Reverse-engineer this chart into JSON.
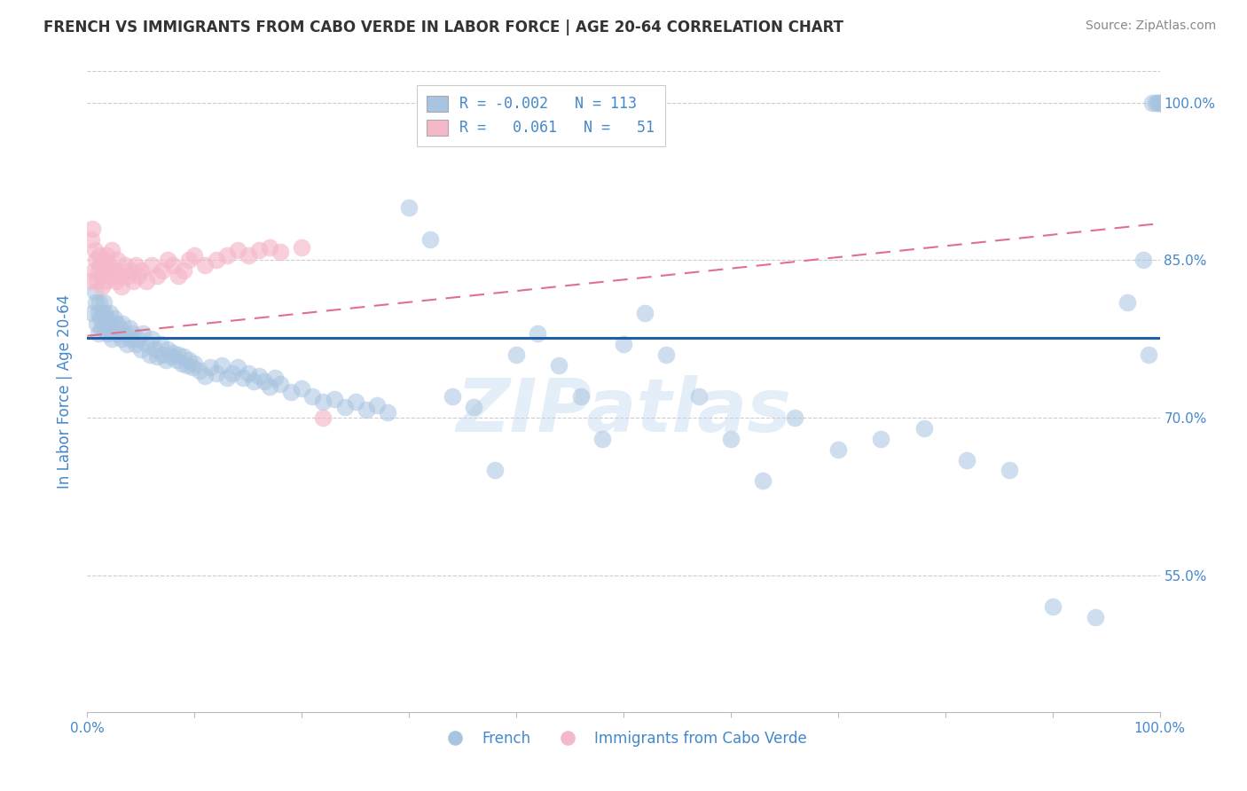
{
  "title": "FRENCH VS IMMIGRANTS FROM CABO VERDE IN LABOR FORCE | AGE 20-64 CORRELATION CHART",
  "source": "Source: ZipAtlas.com",
  "ylabel": "In Labor Force | Age 20-64",
  "xlim": [
    0.0,
    1.0
  ],
  "ylim": [
    0.42,
    1.03
  ],
  "ytick_vals": [
    0.55,
    0.7,
    0.85,
    1.0
  ],
  "ytick_labels": [
    "55.0%",
    "70.0%",
    "85.0%",
    "100.0%"
  ],
  "legend_r_blue": "-0.002",
  "legend_n_blue": "113",
  "legend_r_pink": "0.061",
  "legend_n_pink": "51",
  "blue_scatter_color": "#a8c4e0",
  "blue_line_color": "#1f5fa6",
  "pink_scatter_color": "#f5b8c8",
  "pink_line_color": "#e07090",
  "watermark": "ZIPatlas",
  "title_color": "#333333",
  "tick_label_color": "#4488cc",
  "source_color": "#888888",
  "grid_color": "#cccccc",
  "french_x": [
    0.005,
    0.007,
    0.008,
    0.009,
    0.01,
    0.01,
    0.011,
    0.012,
    0.013,
    0.014,
    0.015,
    0.015,
    0.016,
    0.017,
    0.018,
    0.019,
    0.02,
    0.021,
    0.022,
    0.023,
    0.025,
    0.027,
    0.028,
    0.03,
    0.032,
    0.033,
    0.035,
    0.037,
    0.039,
    0.04,
    0.042,
    0.045,
    0.047,
    0.05,
    0.052,
    0.055,
    0.058,
    0.06,
    0.063,
    0.065,
    0.068,
    0.07,
    0.073,
    0.075,
    0.078,
    0.08,
    0.083,
    0.085,
    0.088,
    0.09,
    0.093,
    0.095,
    0.098,
    0.1,
    0.105,
    0.11,
    0.115,
    0.12,
    0.125,
    0.13,
    0.135,
    0.14,
    0.145,
    0.15,
    0.155,
    0.16,
    0.165,
    0.17,
    0.175,
    0.18,
    0.19,
    0.2,
    0.21,
    0.22,
    0.23,
    0.24,
    0.25,
    0.26,
    0.27,
    0.28,
    0.3,
    0.32,
    0.34,
    0.36,
    0.38,
    0.4,
    0.42,
    0.44,
    0.46,
    0.48,
    0.5,
    0.52,
    0.54,
    0.57,
    0.6,
    0.63,
    0.66,
    0.7,
    0.74,
    0.78,
    0.82,
    0.86,
    0.9,
    0.94,
    0.97,
    0.985,
    0.99,
    0.993,
    0.996,
    0.998,
    1.0,
    1.0,
    1.0
  ],
  "french_y": [
    0.8,
    0.82,
    0.81,
    0.79,
    0.78,
    0.8,
    0.81,
    0.795,
    0.785,
    0.8,
    0.79,
    0.81,
    0.8,
    0.785,
    0.795,
    0.78,
    0.79,
    0.8,
    0.785,
    0.775,
    0.795,
    0.78,
    0.79,
    0.785,
    0.775,
    0.79,
    0.78,
    0.77,
    0.785,
    0.775,
    0.78,
    0.77,
    0.775,
    0.765,
    0.78,
    0.77,
    0.76,
    0.775,
    0.765,
    0.758,
    0.77,
    0.76,
    0.755,
    0.765,
    0.758,
    0.762,
    0.755,
    0.76,
    0.752,
    0.758,
    0.75,
    0.755,
    0.748,
    0.752,
    0.745,
    0.74,
    0.748,
    0.742,
    0.75,
    0.738,
    0.742,
    0.748,
    0.738,
    0.742,
    0.735,
    0.74,
    0.735,
    0.73,
    0.738,
    0.732,
    0.725,
    0.728,
    0.72,
    0.715,
    0.718,
    0.71,
    0.715,
    0.708,
    0.712,
    0.705,
    0.9,
    0.87,
    0.72,
    0.71,
    0.65,
    0.76,
    0.78,
    0.75,
    0.72,
    0.68,
    0.77,
    0.8,
    0.76,
    0.72,
    0.68,
    0.64,
    0.7,
    0.67,
    0.68,
    0.69,
    0.66,
    0.65,
    0.52,
    0.51,
    0.81,
    0.85,
    0.76,
    1.0,
    1.0,
    1.0,
    1.0,
    1.0,
    1.0
  ],
  "cabo_x": [
    0.003,
    0.004,
    0.005,
    0.006,
    0.007,
    0.008,
    0.009,
    0.01,
    0.011,
    0.012,
    0.013,
    0.014,
    0.015,
    0.016,
    0.017,
    0.018,
    0.02,
    0.022,
    0.023,
    0.025,
    0.027,
    0.028,
    0.03,
    0.032,
    0.035,
    0.038,
    0.04,
    0.043,
    0.045,
    0.048,
    0.05,
    0.055,
    0.06,
    0.065,
    0.07,
    0.075,
    0.08,
    0.085,
    0.09,
    0.095,
    0.1,
    0.11,
    0.12,
    0.13,
    0.14,
    0.15,
    0.16,
    0.17,
    0.18,
    0.2,
    0.22
  ],
  "cabo_y": [
    0.83,
    0.87,
    0.88,
    0.84,
    0.86,
    0.85,
    0.83,
    0.84,
    0.855,
    0.845,
    0.835,
    0.825,
    0.85,
    0.84,
    0.83,
    0.855,
    0.845,
    0.835,
    0.86,
    0.84,
    0.83,
    0.85,
    0.835,
    0.825,
    0.845,
    0.835,
    0.84,
    0.83,
    0.845,
    0.835,
    0.84,
    0.83,
    0.845,
    0.835,
    0.84,
    0.85,
    0.845,
    0.835,
    0.84,
    0.85,
    0.855,
    0.845,
    0.85,
    0.855,
    0.86,
    0.855,
    0.86,
    0.862,
    0.858,
    0.862,
    0.7
  ],
  "blue_trend": [
    0.776,
    0.776
  ],
  "pink_trend_start": 0.778,
  "pink_trend_end": 0.885
}
